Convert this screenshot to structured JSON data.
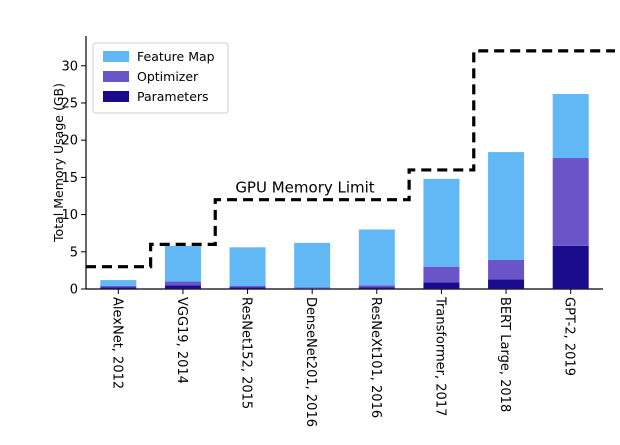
{
  "chart_data": {
    "type": "bar",
    "stacked": true,
    "ylabel": "Total Memory Usage (GB)",
    "ylim": [
      0,
      34
    ],
    "yticks": [
      0,
      5,
      10,
      15,
      20,
      25,
      30
    ],
    "grid": false,
    "legend_position": "top-left",
    "categories": [
      "AlexNet, 2012",
      "VGG19, 2014",
      "ResNet152, 2015",
      "DenseNet201, 2016",
      "ResNeXt101, 2016",
      "Transformer, 2017",
      "BERT Large, 2018",
      "GPT-2, 2019"
    ],
    "series": [
      {
        "name": "Parameters",
        "color": "#1a0a8c",
        "values": [
          0.2,
          0.5,
          0.2,
          0.1,
          0.2,
          0.9,
          1.3,
          5.8
        ]
      },
      {
        "name": "Optimizer",
        "color": "#6a55c8",
        "values": [
          0.2,
          0.5,
          0.2,
          0.1,
          0.3,
          2.1,
          2.6,
          11.8
        ]
      },
      {
        "name": "Feature Map",
        "color": "#62b8f5",
        "values": [
          0.8,
          4.8,
          5.2,
          6.0,
          7.5,
          11.8,
          14.5,
          8.6
        ]
      }
    ],
    "legend_order": [
      "Feature Map",
      "Optimizer",
      "Parameters"
    ],
    "gpu_limit": {
      "label": "GPU Memory Limit",
      "steps": [
        {
          "from_index": -0.5,
          "value": 3
        },
        {
          "from_index": 0.5,
          "value": 6
        },
        {
          "from_index": 1.5,
          "value": 12
        },
        {
          "from_index": 4.5,
          "value": 16
        },
        {
          "from_index": 5.5,
          "value": 32
        }
      ]
    }
  }
}
